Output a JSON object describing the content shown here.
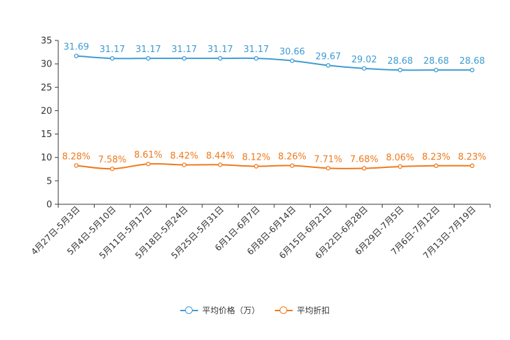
{
  "chart_data": {
    "type": "line",
    "categories": [
      "4月27日-5月3日",
      "5月4日-5月10日",
      "5月11日-5月17日",
      "5月18日-5月24日",
      "5月25日-5月31日",
      "6月1日-6月7日",
      "6月8日-6月14日",
      "6月15日-6月21日",
      "6月22日-6月28日",
      "6月29日-7月5日",
      "7月6日-7月12日",
      "7月13日-7月19日"
    ],
    "series": [
      {
        "name": "平均价格（万）",
        "color": "#3c9cd2",
        "values": [
          31.69,
          31.17,
          31.17,
          31.17,
          31.17,
          31.17,
          30.66,
          29.67,
          29.02,
          28.68,
          28.68,
          28.68
        ],
        "labels": [
          "31.69",
          "31.17",
          "31.17",
          "31.17",
          "31.17",
          "31.17",
          "30.66",
          "29.67",
          "29.02",
          "28.68",
          "28.68",
          "28.68"
        ]
      },
      {
        "name": "平均折扣",
        "color": "#f07818",
        "values": [
          8.28,
          7.58,
          8.61,
          8.42,
          8.44,
          8.12,
          8.26,
          7.71,
          7.68,
          8.06,
          8.23,
          8.23
        ],
        "labels": [
          "8.28%",
          "7.58%",
          "8.61%",
          "8.42%",
          "8.44%",
          "8.12%",
          "8.26%",
          "7.71%",
          "7.68%",
          "8.06%",
          "8.23%",
          "8.23%"
        ]
      }
    ],
    "yticks": [
      "0",
      "5",
      "10",
      "15",
      "20",
      "25",
      "30",
      "35"
    ],
    "ylim": [
      0,
      35
    ],
    "title": "",
    "xlabel": "",
    "ylabel": "",
    "legend_position": "bottom-center"
  }
}
